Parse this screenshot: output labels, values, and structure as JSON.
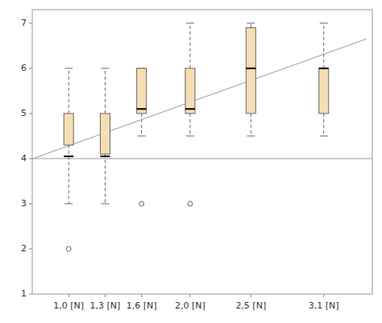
{
  "chart_data": {
    "type": "box",
    "x": [
      1.0,
      1.3,
      1.6,
      2.0,
      2.5,
      3.1
    ],
    "boxes": [
      {
        "q1": 4.3,
        "median": 4.05,
        "q3": 5.0,
        "whislo": 3.0,
        "whishi": 6.0,
        "fliers": [
          2.0
        ]
      },
      {
        "q1": 4.1,
        "median": 4.05,
        "q3": 5.0,
        "whislo": 3.0,
        "whishi": 6.0,
        "fliers": []
      },
      {
        "q1": 5.0,
        "median": 5.1,
        "q3": 6.0,
        "whislo": 4.5,
        "whishi": 6.0,
        "fliers": [
          3.0
        ]
      },
      {
        "q1": 5.0,
        "median": 5.1,
        "q3": 6.0,
        "whislo": 4.5,
        "whishi": 7.0,
        "fliers": [
          3.0
        ]
      },
      {
        "q1": 5.0,
        "median": 6.0,
        "q3": 6.9,
        "whislo": 4.5,
        "whishi": 7.0,
        "fliers": []
      },
      {
        "q1": 5.0,
        "median": 6.0,
        "q3": 6.0,
        "whislo": 4.5,
        "whishi": 7.0,
        "fliers": []
      }
    ],
    "color": "#f5deb3",
    "hline": 4.0,
    "diag_line": {
      "x": [
        0.55,
        3.45
      ],
      "y": [
        3.85,
        6.65
      ]
    },
    "xlim": [
      0.7,
      3.5
    ],
    "xticks": [
      {
        "value": 1.0,
        "label": "1,0 [N]"
      },
      {
        "value": 1.3,
        "label": "1,3 [N]"
      },
      {
        "value": 1.6,
        "label": "1,6 [N]"
      },
      {
        "value": 2.0,
        "label": "2,0 [N]"
      },
      {
        "value": 2.5,
        "label": "2,5 [N]"
      },
      {
        "value": 3.1,
        "label": "3,1 [N]"
      }
    ],
    "ylim": [
      1,
      7.3
    ],
    "yticks": [
      1,
      2,
      3,
      4,
      5,
      6,
      7
    ]
  }
}
